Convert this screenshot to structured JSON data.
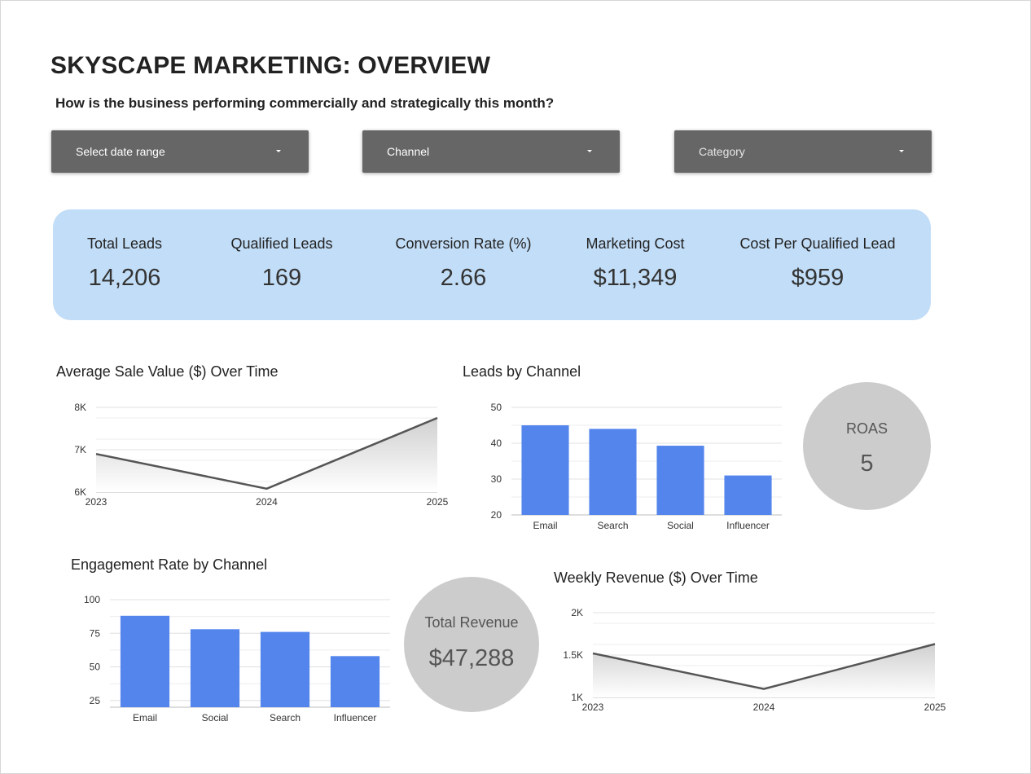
{
  "header": {
    "title": "SKYSCAPE MARKETING: OVERVIEW",
    "subtitle": "How is the business performing commercially and strategically this month?"
  },
  "filters": {
    "date_range": "Select date range",
    "channel": "Channel",
    "category": "Category"
  },
  "kpis": [
    {
      "label": "Total Leads",
      "value": "14,206"
    },
    {
      "label": "Qualified Leads",
      "value": "169"
    },
    {
      "label": "Conversion Rate (%)",
      "value": "2.66"
    },
    {
      "label": "Marketing Cost",
      "value": "$11,349"
    },
    {
      "label": "Cost Per Qualified Lead",
      "value": "$959"
    }
  ],
  "roas": {
    "label": "ROAS",
    "value": "5"
  },
  "total_revenue": {
    "label": "Total Revenue",
    "value": "$47,288"
  },
  "colors": {
    "bar": "#5385ec",
    "line": "#555555",
    "kpi_bg": "#c2ddf7",
    "circle_bg": "#cccccc",
    "dropdown_bg": "#666666"
  },
  "chart_data": [
    {
      "type": "area",
      "title": "Average Sale Value ($) Over Time",
      "x": [
        "2023",
        "2024",
        "2025"
      ],
      "values": [
        6900,
        6080,
        7750
      ],
      "ylim": [
        6000,
        8000
      ],
      "yticks": [
        6000,
        7000,
        8000
      ],
      "ytick_labels": [
        "6K",
        "7K",
        "8K"
      ],
      "grid": true
    },
    {
      "type": "bar",
      "title": "Leads by Channel",
      "categories": [
        "Email",
        "Search",
        "Social",
        "Influencer"
      ],
      "values": [
        45,
        44,
        39.3,
        31
      ],
      "ylim": [
        20,
        50
      ],
      "yticks": [
        20,
        30,
        40,
        50
      ],
      "ytick_labels": [
        "20",
        "30",
        "40",
        "50"
      ],
      "grid": true
    },
    {
      "type": "bar",
      "title": "Engagement Rate by Channel",
      "categories": [
        "Email",
        "Social",
        "Search",
        "Influencer"
      ],
      "values": [
        88,
        78,
        76,
        58
      ],
      "ylim": [
        20,
        100
      ],
      "yticks": [
        25,
        50,
        75,
        100
      ],
      "ytick_labels": [
        "25",
        "50",
        "75",
        "100"
      ],
      "grid": true
    },
    {
      "type": "area",
      "title": "Weekly Revenue ($) Over Time",
      "x": [
        "2023",
        "2024",
        "2025"
      ],
      "values": [
        1520,
        1100,
        1630
      ],
      "ylim": [
        1000,
        2000
      ],
      "yticks": [
        1000,
        1500,
        2000
      ],
      "ytick_labels": [
        "1K",
        "1.5K",
        "2K"
      ],
      "grid": true
    }
  ]
}
